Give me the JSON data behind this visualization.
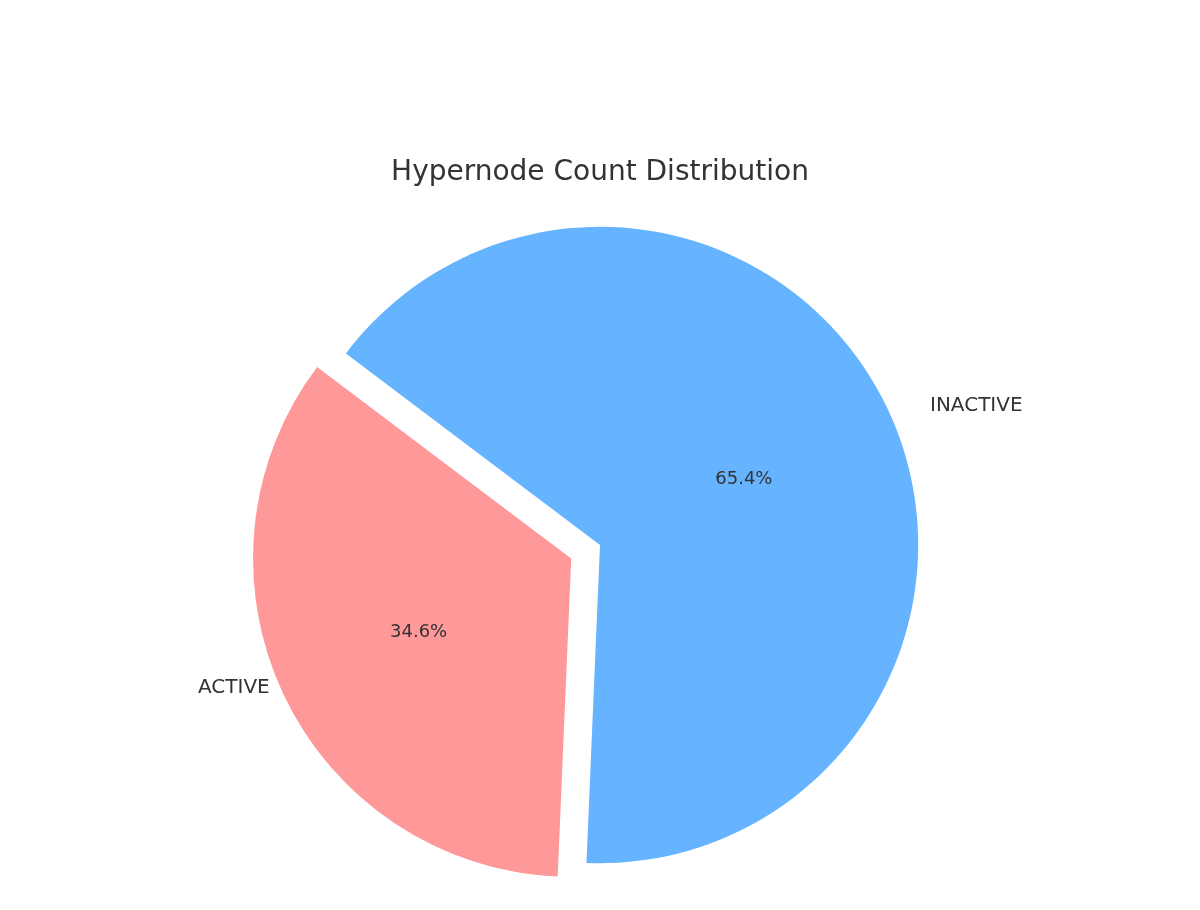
{
  "chart_data": {
    "type": "pie",
    "title": "Hypernode Count Distribution",
    "categories": [
      "ACTIVE",
      "INACTIVE"
    ],
    "values": [
      34.6,
      65.4
    ],
    "colors": [
      "#ff9999",
      "#66b3ff"
    ],
    "value_labels": [
      "34.6%",
      "65.4%"
    ],
    "legend": false
  }
}
